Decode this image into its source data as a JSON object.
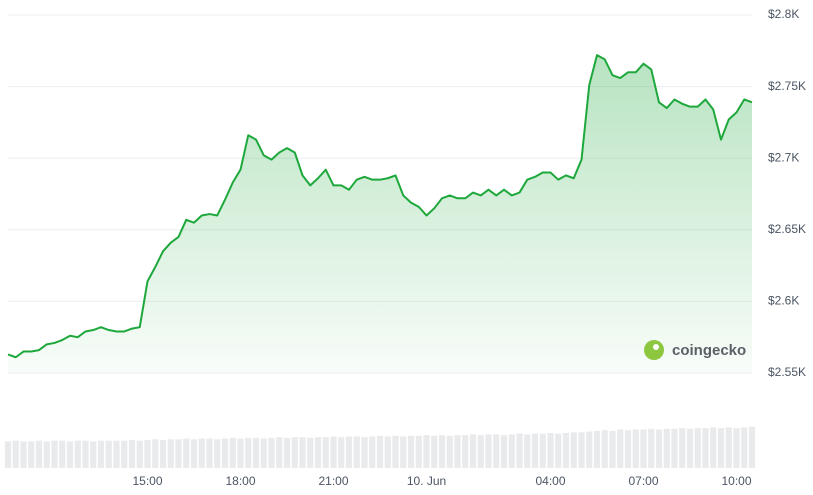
{
  "chart_data": {
    "type": "line",
    "categories": [
      null,
      null,
      null,
      null,
      null,
      null,
      null,
      null,
      null,
      null,
      null,
      null,
      null,
      null,
      null,
      null,
      null,
      null,
      "15:00",
      null,
      null,
      null,
      null,
      null,
      null,
      null,
      null,
      null,
      null,
      null,
      "18:00",
      null,
      null,
      null,
      null,
      null,
      null,
      null,
      null,
      null,
      null,
      null,
      "21:00",
      null,
      null,
      null,
      null,
      null,
      null,
      null,
      null,
      null,
      null,
      null,
      "10. Jun",
      null,
      null,
      null,
      null,
      null,
      null,
      null,
      null,
      null,
      null,
      null,
      null,
      null,
      null,
      null,
      "04:00",
      null,
      null,
      null,
      null,
      null,
      null,
      null,
      null,
      null,
      null,
      null,
      "07:00",
      null,
      null,
      null,
      null,
      null,
      null,
      null,
      null,
      null,
      null,
      null,
      "10:00",
      null,
      null
    ],
    "series": [
      {
        "color": "#1ea83c",
        "values": [
          2563,
          2561,
          2565,
          2565,
          2566,
          2570,
          2571,
          2573,
          2576,
          2575,
          2579,
          2580,
          2582,
          2580,
          2579,
          2579,
          2581,
          2582,
          2614,
          2624,
          2635,
          2641,
          2645,
          2657,
          2655,
          2660,
          2661,
          2660,
          2671,
          2683,
          2692,
          2716,
          2713,
          2702,
          2699,
          2704,
          2707,
          2704,
          2688,
          2681,
          2686,
          2692,
          2681,
          2681,
          2678,
          2685,
          2687,
          2685,
          2685,
          2686,
          2688,
          2674,
          2669,
          2666,
          2660,
          2665,
          2672,
          2674,
          2672,
          2672,
          2676,
          2674,
          2678,
          2674,
          2678,
          2674,
          2676,
          2685,
          2687,
          2690,
          2690,
          2685,
          2688,
          2686,
          2699,
          2751,
          2772,
          2769,
          2758,
          2756,
          2760,
          2760,
          2766,
          2762,
          2739,
          2735,
          2741,
          2738,
          2736,
          2736,
          2741,
          2734,
          2713,
          2727,
          2732,
          2741,
          2739
        ]
      }
    ],
    "volume": {
      "color": "#e9eaec",
      "values": [
        38,
        39,
        38,
        38,
        39,
        38,
        39,
        39,
        38,
        39,
        39,
        38,
        39,
        39,
        39,
        39,
        40,
        39,
        40,
        41,
        40,
        41,
        41,
        42,
        41,
        42,
        42,
        41,
        42,
        43,
        42,
        43,
        43,
        42,
        43,
        44,
        43,
        44,
        44,
        43,
        44,
        44,
        45,
        44,
        45,
        45,
        44,
        45,
        46,
        45,
        46,
        45,
        46,
        46,
        47,
        46,
        47,
        46,
        47,
        47,
        48,
        47,
        48,
        48,
        47,
        48,
        49,
        48,
        49,
        49,
        50,
        49,
        50,
        51,
        51,
        52,
        53,
        54,
        53,
        55,
        54,
        55,
        55,
        56,
        55,
        56,
        56,
        57,
        56,
        57,
        57,
        58,
        57,
        58,
        57,
        58,
        59
      ]
    },
    "ylim": [
      2550,
      2800
    ],
    "yticks": [
      {
        "value": 2550,
        "label": "$2.55K"
      },
      {
        "value": 2600,
        "label": "$2.6K"
      },
      {
        "value": 2650,
        "label": "$2.65K"
      },
      {
        "value": 2700,
        "label": "$2.7K"
      },
      {
        "value": 2750,
        "label": "$2.75K"
      },
      {
        "value": 2800,
        "label": "$2.8K"
      }
    ],
    "grid": true,
    "watermark": "coingecko"
  }
}
